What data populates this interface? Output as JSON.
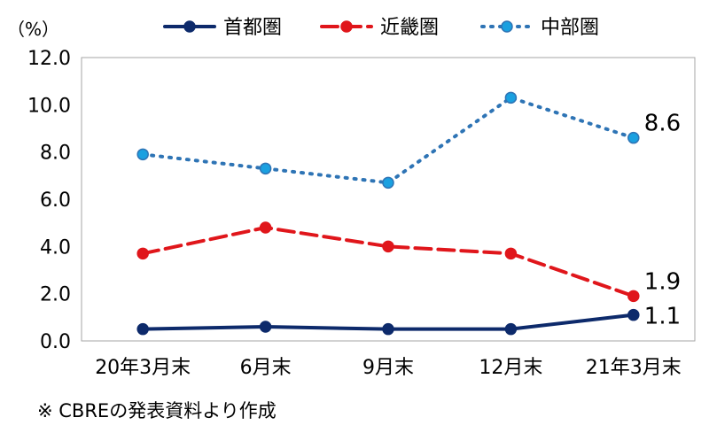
{
  "chart_data": {
    "type": "line",
    "unit_label": "（%）",
    "categories": [
      "20年3月末",
      "6月末",
      "9月末",
      "12月末",
      "21年3月末"
    ],
    "ylim": [
      0,
      12
    ],
    "yticks": [
      "0.0",
      "2.0",
      "4.0",
      "6.0",
      "8.0",
      "10.0",
      "12.0"
    ],
    "grid": false,
    "legend_position": "top",
    "series": [
      {
        "name": "首都圏",
        "values": [
          0.5,
          0.6,
          0.5,
          0.5,
          1.1
        ],
        "color": "#0d2a6b",
        "style": "solid",
        "end_label": "1.1"
      },
      {
        "name": "近畿圏",
        "values": [
          3.7,
          4.8,
          4.0,
          3.7,
          1.9
        ],
        "color": "#e0161b",
        "style": "dashed",
        "end_label": "1.9"
      },
      {
        "name": "中部圏",
        "values": [
          7.9,
          7.3,
          6.7,
          10.3,
          8.6
        ],
        "color": "#2e74b5",
        "marker_color": "#1aa0e0",
        "style": "dotted",
        "end_label": "8.6"
      }
    ]
  },
  "footnote": "※ CBREの発表資料より作成"
}
